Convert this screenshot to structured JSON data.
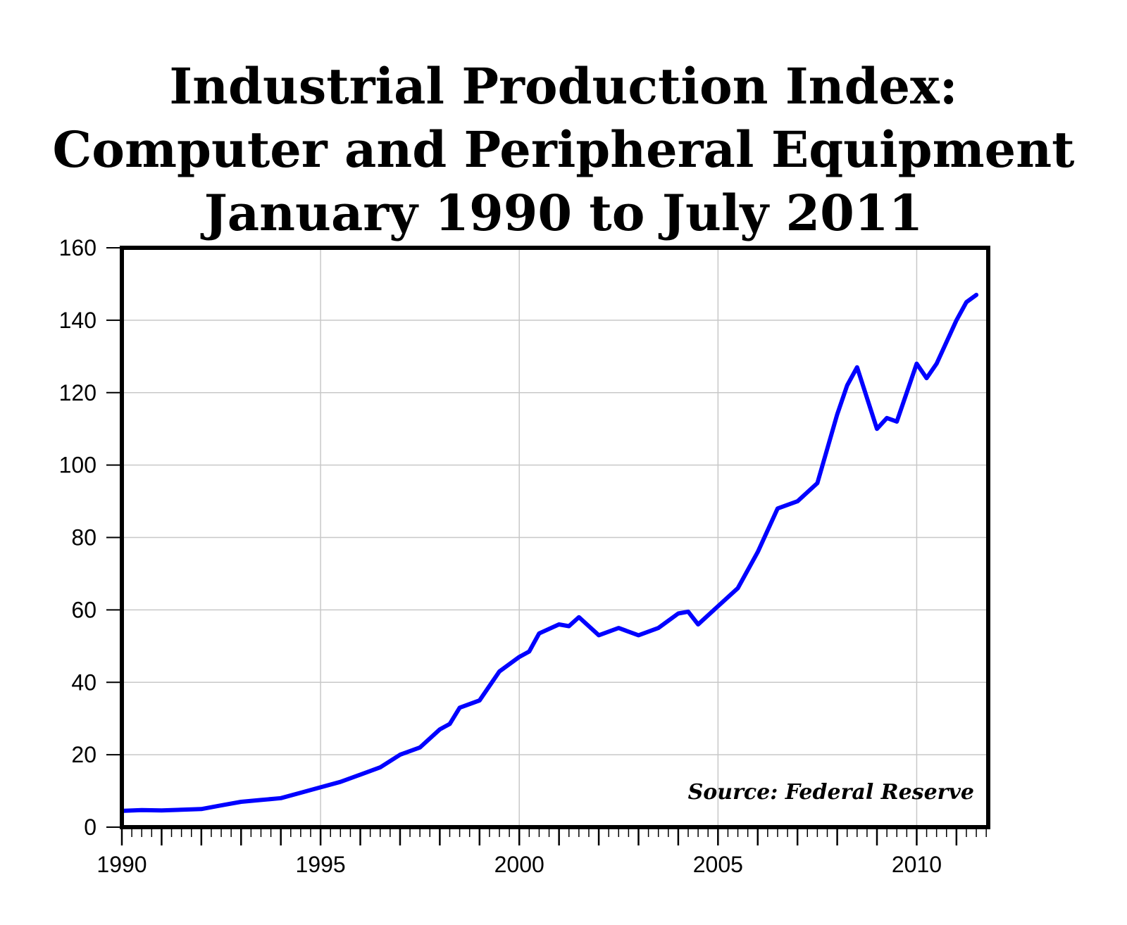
{
  "chart_data": {
    "type": "line",
    "title": "Industrial Production Index: Computer and Peripheral Equipment January 1990 to July 2011",
    "title_lines": [
      "Industrial Production Index:",
      "Computer and Peripheral Equipment",
      "January 1990 to July 2011"
    ],
    "xlabel": "",
    "ylabel": "",
    "xlim": [
      1990.0,
      2011.8
    ],
    "ylim": [
      0,
      160
    ],
    "x_ticks": [
      1990,
      1995,
      2000,
      2005,
      2010
    ],
    "x_tick_labels": [
      "1990",
      "1995",
      "2000",
      "2005",
      "2010"
    ],
    "y_ticks": [
      0,
      20,
      40,
      60,
      80,
      100,
      120,
      140,
      160
    ],
    "y_tick_labels": [
      "0",
      "20",
      "40",
      "60",
      "80",
      "100",
      "120",
      "140",
      "160"
    ],
    "grid": true,
    "annotation": "Source: Federal Reserve",
    "line_color": "#0000ff",
    "series": [
      {
        "x": [
          "1990-01",
          "1990-07",
          "1991-01",
          "1991-07",
          "1992-01",
          "1992-07",
          "1993-01",
          "1993-07",
          "1994-01",
          "1994-07",
          "1995-01",
          "1995-07",
          "1996-01",
          "1996-07",
          "1997-01",
          "1997-07",
          "1998-01",
          "1998-04",
          "1998-07",
          "1999-01",
          "1999-07",
          "2000-01",
          "2000-04",
          "2000-07",
          "2001-01",
          "2001-04",
          "2001-07",
          "2002-01",
          "2002-07",
          "2003-01",
          "2003-07",
          "2004-01",
          "2004-04",
          "2004-07",
          "2005-01",
          "2005-07",
          "2006-01",
          "2006-07",
          "2007-01",
          "2007-07",
          "2008-01",
          "2008-04",
          "2008-07",
          "2009-01",
          "2009-04",
          "2009-07",
          "2010-01",
          "2010-04",
          "2010-07",
          "2011-01",
          "2011-04",
          "2011-07"
        ],
        "y": [
          4.5,
          4.7,
          4.6,
          4.8,
          5.0,
          6.0,
          7.0,
          7.5,
          8.0,
          9.5,
          11.0,
          12.5,
          14.5,
          16.5,
          20.0,
          22.0,
          27.0,
          28.5,
          33.0,
          35.0,
          43.0,
          47.0,
          48.5,
          53.5,
          56.0,
          55.5,
          58.0,
          53.0,
          55.0,
          53.0,
          55.0,
          59.0,
          59.5,
          56.0,
          61.0,
          66.0,
          76.0,
          88.0,
          90.0,
          95.0,
          114.0,
          122.0,
          127.0,
          110.0,
          113.0,
          112.0,
          128.0,
          124.0,
          128.0,
          140.0,
          145.0,
          147.0
        ]
      }
    ]
  }
}
